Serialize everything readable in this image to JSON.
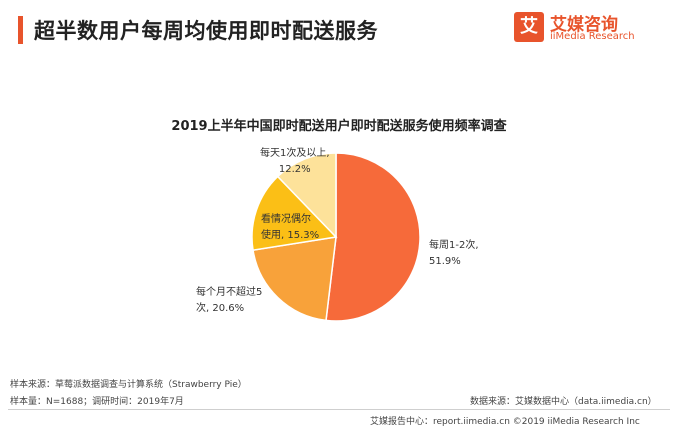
{
  "header": {
    "title": "超半数用户每周均使用即时配送服务",
    "logo_mark": "艾",
    "logo_name": "艾媒咨询",
    "logo_sub": "iiMedia Research"
  },
  "chart_data": {
    "type": "pie",
    "title": "2019上半年中国即时配送用户即时配送服务使用频率调查",
    "slices": [
      {
        "label": "每周1-2次,",
        "value": 51.9,
        "value_text": "51.9%",
        "color": "#f66a3a"
      },
      {
        "label": "每个月不超过5",
        "label2": "次,",
        "value": 20.6,
        "value_text": "20.6%",
        "color": "#f8a23a"
      },
      {
        "label": "看情况偶尔",
        "label2": "使用,",
        "value": 15.3,
        "value_text": "15.3%",
        "color": "#fbbf16"
      },
      {
        "label": "每天1次及以上,",
        "value": 12.2,
        "value_text": "12.2%",
        "color": "#fde29a"
      }
    ]
  },
  "footer": {
    "source_left": "样本来源：草莓派数据调查与计算系统（Strawberry Pie）",
    "sample": "样本量：N=1688；调研时间：2019年7月",
    "source_right": "数据来源：艾媒数据中心（data.iimedia.cn）",
    "bottom_line": "艾媒报告中心：report.iimedia.cn  ©2019  iiMedia Research  Inc"
  }
}
